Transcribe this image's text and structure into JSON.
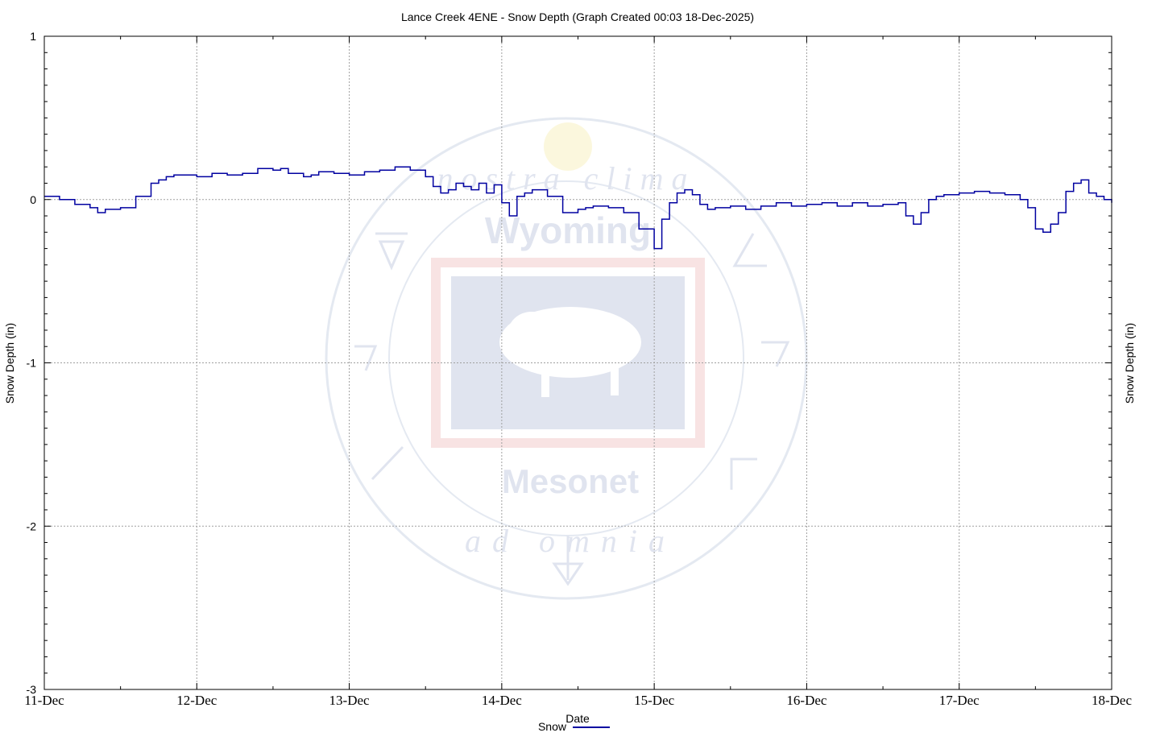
{
  "chart_data": {
    "type": "line",
    "title": "Lance Creek 4ENE - Snow Depth (Graph Created 00:03 18-Dec-2025)",
    "xlabel": "Date",
    "ylabel": "Snow Depth (in)",
    "ylabel_right": "Snow Depth (in)",
    "xlim": [
      0,
      7
    ],
    "ylim": [
      -3,
      1
    ],
    "grid": true,
    "legend_position": "bottom-center",
    "x_ticks": [
      {
        "value": 0,
        "label": "11-Dec"
      },
      {
        "value": 1,
        "label": "12-Dec"
      },
      {
        "value": 2,
        "label": "13-Dec"
      },
      {
        "value": 3,
        "label": "14-Dec"
      },
      {
        "value": 4,
        "label": "15-Dec"
      },
      {
        "value": 5,
        "label": "16-Dec"
      },
      {
        "value": 6,
        "label": "17-Dec"
      },
      {
        "value": 7,
        "label": "18-Dec"
      }
    ],
    "y_ticks": [
      {
        "value": 1,
        "label": "1"
      },
      {
        "value": 0,
        "label": "0"
      },
      {
        "value": -1,
        "label": "-1"
      },
      {
        "value": -2,
        "label": "-2"
      },
      {
        "value": -3,
        "label": "-3"
      }
    ],
    "series": [
      {
        "name": "Snow",
        "color": "#0000a0",
        "x": [
          0.0,
          0.1,
          0.2,
          0.3,
          0.35,
          0.4,
          0.5,
          0.6,
          0.7,
          0.75,
          0.8,
          0.85,
          0.9,
          1.0,
          1.1,
          1.2,
          1.3,
          1.4,
          1.5,
          1.55,
          1.6,
          1.7,
          1.75,
          1.8,
          1.9,
          2.0,
          2.1,
          2.2,
          2.3,
          2.4,
          2.5,
          2.55,
          2.6,
          2.65,
          2.7,
          2.75,
          2.8,
          2.85,
          2.9,
          2.95,
          3.0,
          3.05,
          3.1,
          3.15,
          3.2,
          3.3,
          3.4,
          3.5,
          3.55,
          3.6,
          3.7,
          3.8,
          3.9,
          4.0,
          4.05,
          4.1,
          4.15,
          4.2,
          4.25,
          4.3,
          4.35,
          4.4,
          4.5,
          4.6,
          4.7,
          4.8,
          4.9,
          5.0,
          5.1,
          5.2,
          5.3,
          5.4,
          5.5,
          5.6,
          5.65,
          5.7,
          5.75,
          5.8,
          5.85,
          5.9,
          6.0,
          6.1,
          6.2,
          6.3,
          6.4,
          6.45,
          6.5,
          6.55,
          6.6,
          6.65,
          6.7,
          6.75,
          6.8,
          6.85,
          6.9,
          6.95,
          7.0
        ],
        "y": [
          0.02,
          0.0,
          -0.03,
          -0.05,
          -0.08,
          -0.06,
          -0.05,
          0.02,
          0.1,
          0.12,
          0.14,
          0.15,
          0.15,
          0.14,
          0.16,
          0.15,
          0.16,
          0.19,
          0.18,
          0.19,
          0.16,
          0.14,
          0.15,
          0.17,
          0.16,
          0.15,
          0.17,
          0.18,
          0.2,
          0.18,
          0.14,
          0.08,
          0.04,
          0.06,
          0.1,
          0.08,
          0.06,
          0.1,
          0.04,
          0.09,
          -0.02,
          -0.1,
          0.02,
          0.04,
          0.06,
          0.02,
          -0.08,
          -0.06,
          -0.05,
          -0.04,
          -0.05,
          -0.08,
          -0.18,
          -0.3,
          -0.12,
          -0.02,
          0.04,
          0.06,
          0.03,
          -0.03,
          -0.06,
          -0.05,
          -0.04,
          -0.06,
          -0.04,
          -0.02,
          -0.04,
          -0.03,
          -0.02,
          -0.04,
          -0.02,
          -0.04,
          -0.03,
          -0.02,
          -0.1,
          -0.15,
          -0.08,
          0.0,
          0.02,
          0.03,
          0.04,
          0.05,
          0.04,
          0.03,
          0.0,
          -0.05,
          -0.18,
          -0.2,
          -0.15,
          -0.08,
          0.05,
          0.1,
          0.12,
          0.04,
          0.02,
          0.0,
          -0.02
        ]
      }
    ]
  },
  "watermark": {
    "top_text": "nostra clima",
    "brand_top": "Wyoming",
    "brand_bottom": "Mesonet",
    "bottom_text": "ad omnia"
  }
}
